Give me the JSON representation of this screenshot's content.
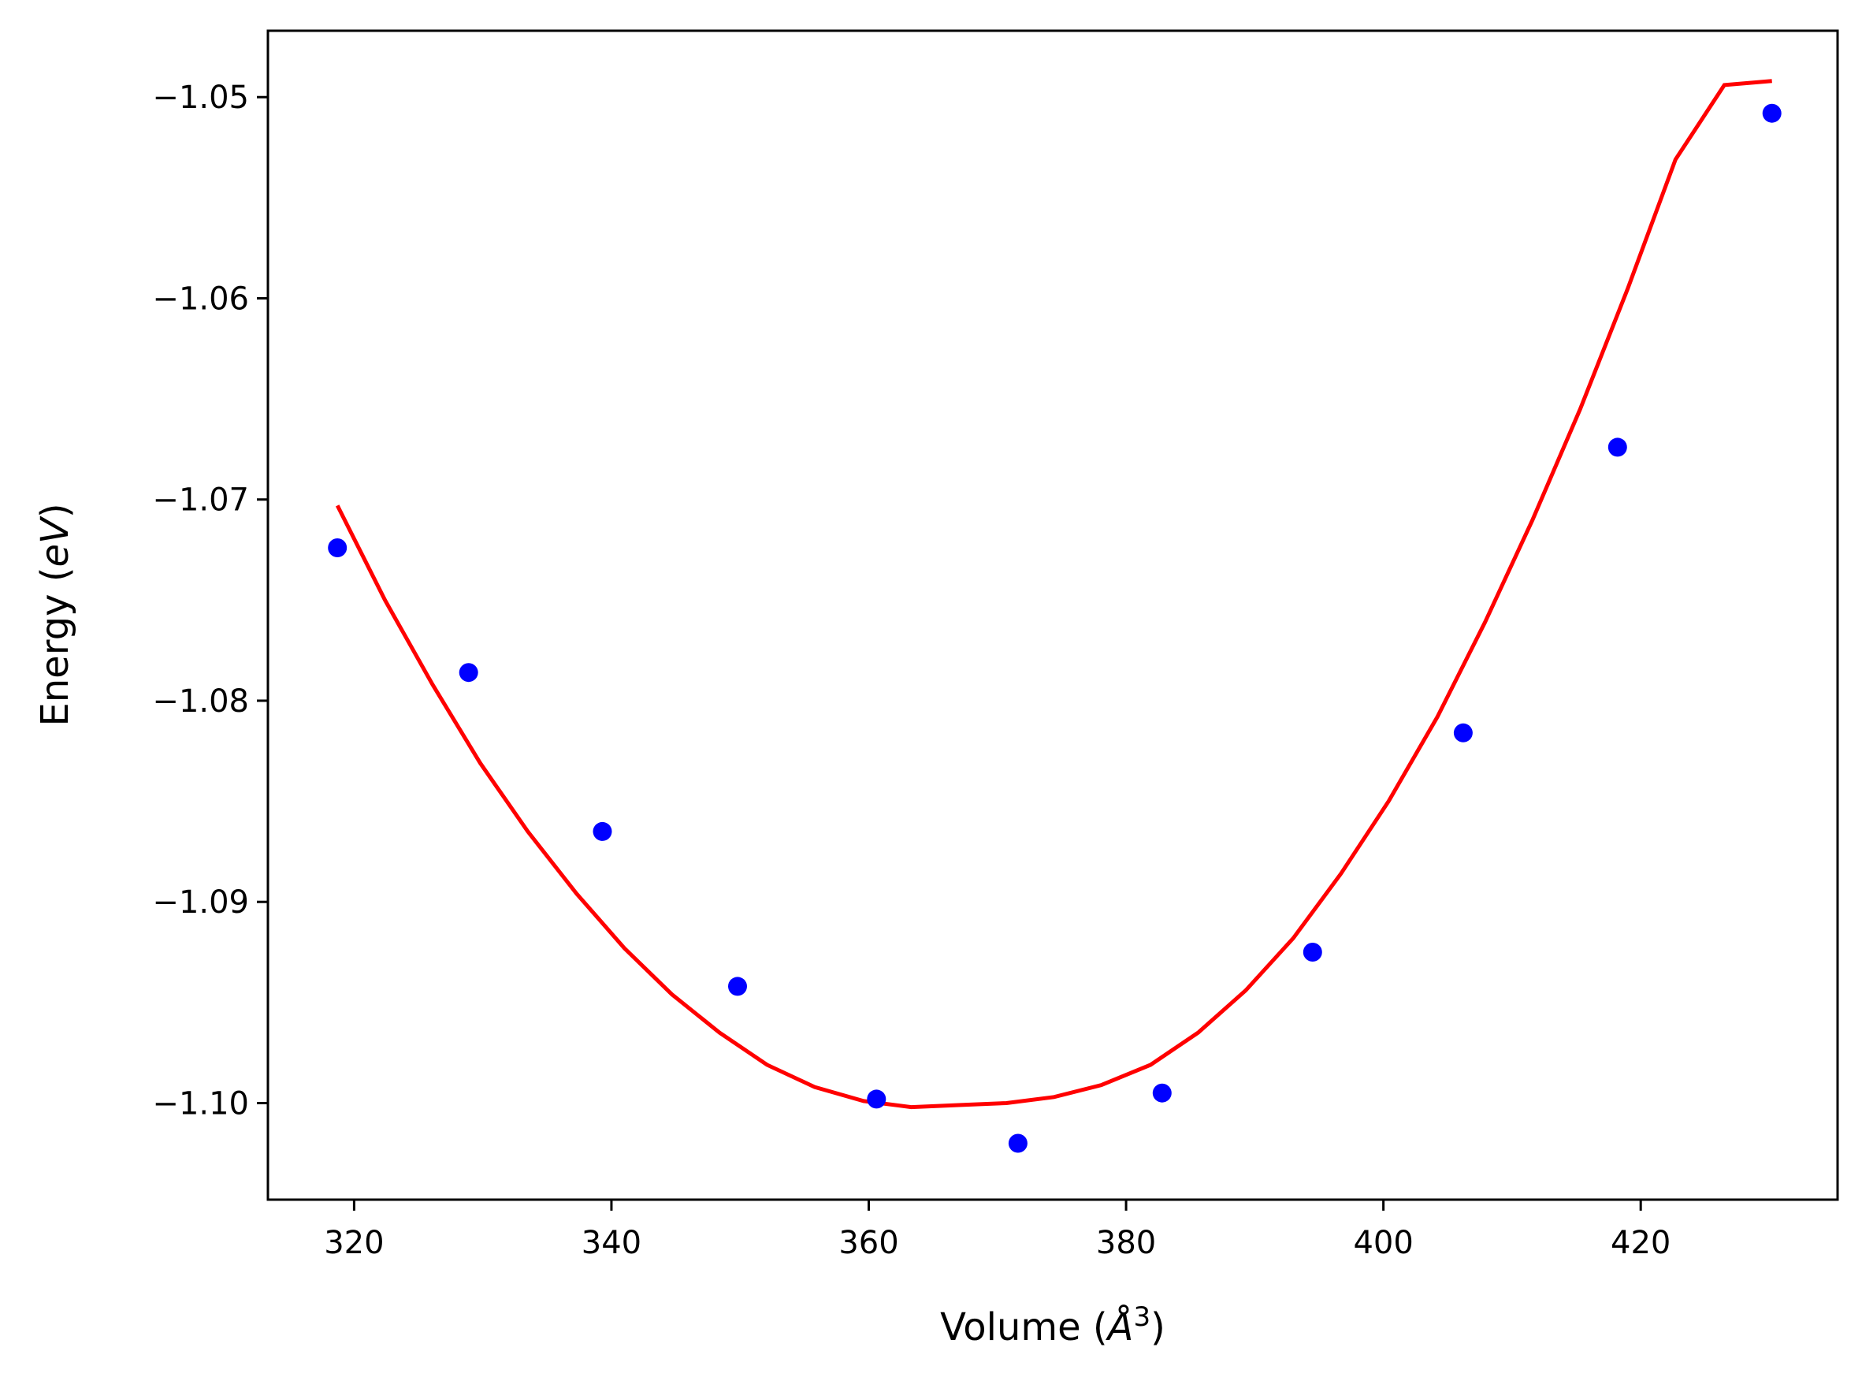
{
  "chart_data": {
    "type": "scatter",
    "title": "",
    "xlabel_parts": {
      "before": "Volume (",
      "symbol": "Å",
      "exponent": "3",
      "after": ")"
    },
    "ylabel_parts": {
      "before": "Energy (",
      "italic": "eV",
      "after": ")"
    },
    "xlim": [
      313.3,
      435.3
    ],
    "ylim": [
      -1.1048,
      -1.0467
    ],
    "xticks": [
      320,
      340,
      360,
      380,
      400,
      420
    ],
    "xtick_labels": [
      "320",
      "340",
      "360",
      "380",
      "400",
      "420"
    ],
    "yticks": [
      -1.1,
      -1.09,
      -1.08,
      -1.07,
      -1.06,
      -1.05
    ],
    "ytick_labels": [
      "−1.10",
      "−1.09",
      "−1.08",
      "−1.07",
      "−1.06",
      "−1.05"
    ],
    "grid": false,
    "series": [
      {
        "type": "scatter",
        "color": "#0000ff",
        "x": [
          318.7,
          328.9,
          339.3,
          349.8,
          360.6,
          371.6,
          382.8,
          394.5,
          406.2,
          418.2,
          430.2
        ],
        "y": [
          -1.0724,
          -1.0786,
          -1.0865,
          -1.0942,
          -1.0998,
          -1.102,
          -1.0995,
          -1.0925,
          -1.0816,
          -1.0674,
          -1.0508
        ]
      },
      {
        "type": "line",
        "color": "#ff0000",
        "x": [
          318.7,
          322.4,
          326.1,
          329.8,
          333.5,
          337.3,
          341.0,
          344.7,
          348.4,
          352.1,
          355.8,
          359.6,
          363.3,
          367.0,
          370.7,
          374.4,
          378.1,
          381.9,
          385.6,
          389.3,
          393.0,
          396.7,
          400.4,
          404.2,
          407.9,
          411.6,
          415.3,
          419.0,
          422.7,
          426.5,
          430.2
        ],
        "y": [
          -1.0703,
          -1.075,
          -1.0792,
          -1.0831,
          -1.0865,
          -1.0896,
          -1.0923,
          -1.0946,
          -1.0965,
          -1.0981,
          -1.0992,
          -1.0999,
          -1.1002,
          -1.1001,
          -1.1,
          -1.0997,
          -1.0991,
          -1.0981,
          -1.0965,
          -1.0944,
          -1.0918,
          -1.0886,
          -1.085,
          -1.0808,
          -1.0761,
          -1.071,
          -1.0655,
          -1.0595,
          -1.0531,
          -1.0494,
          -1.0492
        ]
      }
    ]
  }
}
